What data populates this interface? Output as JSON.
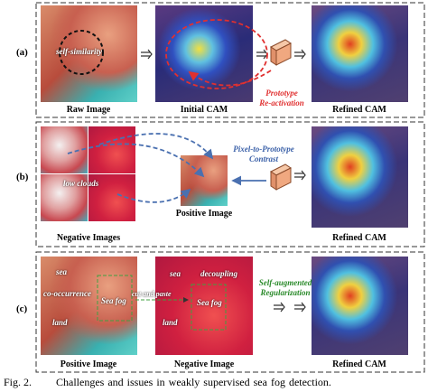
{
  "figure": {
    "panel_a": {
      "label": "(a)",
      "annotation": "self-similarity",
      "raw_caption": "Raw Image",
      "initial_caption": "Initial CAM",
      "method": [
        "Prototype",
        "Re-activation"
      ],
      "refined_caption": "Refined CAM"
    },
    "panel_b": {
      "label": "(b)",
      "annotation": "low clouds",
      "negative_caption": "Negative Images",
      "positive_caption": "Positive Image",
      "method": [
        "Pixel-to-Prototype",
        "Contrast"
      ],
      "refined_caption": "Refined CAM"
    },
    "panel_c": {
      "label": "(c)",
      "positive_annotations": [
        "sea",
        "co-occurrence",
        "Sea fog",
        "land"
      ],
      "operation": "cut and paste",
      "negative_annotations": [
        "sea",
        "decoupling",
        "Sea fog",
        "land"
      ],
      "method": [
        "Self-augmented",
        "Regularization"
      ],
      "positive_caption": "Positive Image",
      "negative_caption": "Negative Image",
      "refined_caption": "Refined CAM"
    },
    "caption": {
      "label": "Fig. 2.",
      "text": "Challenges and issues in weakly supervised sea fog detection."
    }
  }
}
